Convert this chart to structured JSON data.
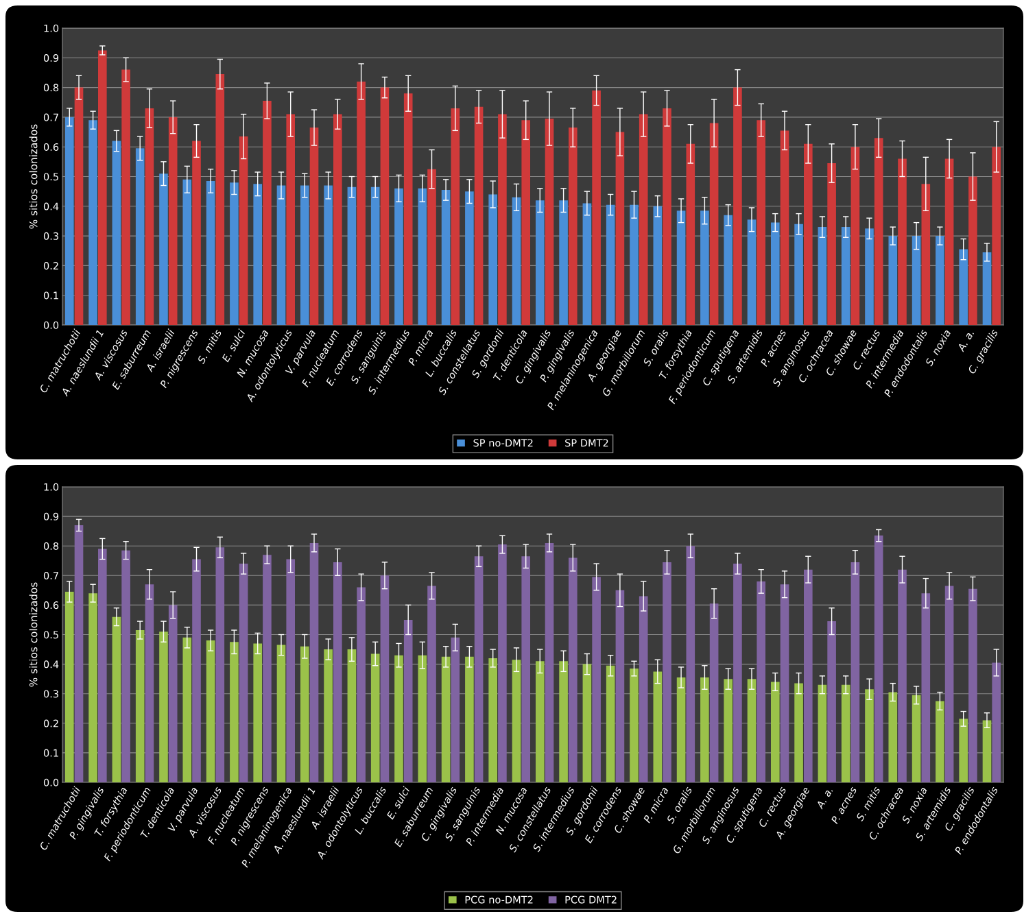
{
  "chart_data": [
    {
      "type": "bar",
      "ylabel": "% sitios colonizados",
      "grid": "y",
      "legend": "bottom",
      "ylim": [
        0,
        1
      ],
      "yticks": [
        {
          "value": 0,
          "label": "0.0"
        },
        {
          "value": 0.1,
          "label": "0.1"
        },
        {
          "value": 0.2,
          "label": "0.2"
        },
        {
          "value": 0.3,
          "label": "0.3"
        },
        {
          "value": 0.4,
          "label": "0.4"
        },
        {
          "value": 0.5,
          "label": "0.5"
        },
        {
          "value": 0.6,
          "label": "0.6"
        },
        {
          "value": 0.7,
          "label": "0.7"
        },
        {
          "value": 0.8,
          "label": "0.8"
        },
        {
          "value": 0.9,
          "label": "0.9"
        },
        {
          "value": 1,
          "label": "1.0"
        }
      ],
      "categories": [
        "C. matruchotii",
        "A. naeslundii 1",
        "A. viscosus",
        "E. saburreum",
        "A. israelii",
        "P. nigrescens",
        "S. mitis",
        "E. sulci",
        "N. mucosa",
        "A. odontolyticus",
        "V. parvula",
        "F. nucleatum",
        "E. corrodens",
        "S. sanguinis",
        "S. intermedius",
        "P. micra",
        "L. buccalis",
        "S. constellatus",
        "S. gordonii",
        "T. denticola",
        "C. gingivalis",
        "P. gingivalis",
        "P. melaninogenica",
        "A. georgiae",
        "G. morbillorum",
        "S. oralis",
        "T. forsythia",
        "F. periodonticum",
        "C. sputigena",
        "S. artemidis",
        "P. acnes",
        "S. anginosus",
        "C. ochracea",
        "C. showae",
        "C. rectus",
        "P. intermedia",
        "P. endodontalis",
        "S. noxia",
        "A. a.",
        "C. gracilis"
      ],
      "series": [
        {
          "name": "SP no-DMT2",
          "color": "#4a8fd8",
          "values": [
            0.7,
            0.69,
            0.62,
            0.595,
            0.51,
            0.49,
            0.485,
            0.48,
            0.475,
            0.47,
            0.47,
            0.47,
            0.465,
            0.465,
            0.46,
            0.46,
            0.455,
            0.45,
            0.44,
            0.43,
            0.42,
            0.42,
            0.41,
            0.405,
            0.405,
            0.4,
            0.385,
            0.385,
            0.37,
            0.355,
            0.345,
            0.34,
            0.33,
            0.33,
            0.325,
            0.3,
            0.3,
            0.3,
            0.255,
            0.245
          ],
          "errors": [
            0.03,
            0.03,
            0.035,
            0.04,
            0.04,
            0.045,
            0.04,
            0.04,
            0.04,
            0.045,
            0.04,
            0.045,
            0.035,
            0.035,
            0.045,
            0.045,
            0.035,
            0.04,
            0.045,
            0.045,
            0.04,
            0.04,
            0.04,
            0.035,
            0.045,
            0.035,
            0.04,
            0.045,
            0.035,
            0.04,
            0.03,
            0.035,
            0.035,
            0.035,
            0.035,
            0.03,
            0.045,
            0.03,
            0.035,
            0.03
          ]
        },
        {
          "name": "SP DMT2",
          "color": "#d03a3a",
          "values": [
            0.8,
            0.925,
            0.86,
            0.73,
            0.7,
            0.62,
            0.845,
            0.635,
            0.755,
            0.71,
            0.665,
            0.71,
            0.82,
            0.8,
            0.78,
            0.525,
            0.73,
            0.735,
            0.71,
            0.69,
            0.695,
            0.665,
            0.79,
            0.65,
            0.71,
            0.73,
            0.61,
            0.68,
            0.8,
            0.69,
            0.655,
            0.61,
            0.545,
            0.6,
            0.63,
            0.56,
            0.475,
            0.56,
            0.5,
            0.6
          ],
          "errors": [
            0.04,
            0.015,
            0.04,
            0.065,
            0.055,
            0.055,
            0.05,
            0.075,
            0.06,
            0.075,
            0.06,
            0.05,
            0.06,
            0.035,
            0.06,
            0.065,
            0.075,
            0.055,
            0.08,
            0.065,
            0.09,
            0.065,
            0.05,
            0.08,
            0.075,
            0.06,
            0.065,
            0.08,
            0.06,
            0.055,
            0.065,
            0.065,
            0.065,
            0.075,
            0.065,
            0.06,
            0.09,
            0.065,
            0.08,
            0.085
          ]
        }
      ]
    },
    {
      "type": "bar",
      "ylabel": "% sitios colonizados",
      "grid": "y",
      "legend": "bottom",
      "ylim": [
        0,
        1
      ],
      "yticks": [
        {
          "value": 0,
          "label": "0.0"
        },
        {
          "value": 0.1,
          "label": "0.1"
        },
        {
          "value": 0.2,
          "label": "0.2"
        },
        {
          "value": 0.3,
          "label": "0.3"
        },
        {
          "value": 0.4,
          "label": "0.4"
        },
        {
          "value": 0.5,
          "label": "0.5"
        },
        {
          "value": 0.6,
          "label": "0.6"
        },
        {
          "value": 0.7,
          "label": "0.7"
        },
        {
          "value": 0.8,
          "label": "0.8"
        },
        {
          "value": 0.9,
          "label": "0.9"
        },
        {
          "value": 1,
          "label": "1.0"
        }
      ],
      "categories": [
        "C. matruchotii",
        "P. gingivalis",
        "T. forsythia",
        "F. periodonticum",
        "T. denticola",
        "V. parvula",
        "A. viscosus",
        "F. nucleatum",
        "P. nigrescens",
        "P. melaninogenica",
        "A. naeslundii 1",
        "A. israelii",
        "A. odontolyticus",
        "L. buccalis",
        "E. sulci",
        "E. saburreum",
        "C. gingivalis",
        "S. sanguinis",
        "P. intermedia",
        "N. mucosa",
        "S. constellatus",
        "S. intermedius",
        "S. gordonii",
        "E. corrodens",
        "C. showae",
        "P. micra",
        "S. oralis",
        "G. morbillorum",
        "S. anginosus",
        "C. sputigena",
        "C. rectus",
        "A. georgiae",
        "A. a.",
        "P. acnes",
        "S. mitis",
        "C. ochracea",
        "S. noxia",
        "S. artemidis",
        "C. gracilis",
        "P. endodontalis"
      ],
      "series": [
        {
          "name": "PCG no-DMT2",
          "color": "#9bc24a",
          "values": [
            0.645,
            0.64,
            0.56,
            0.515,
            0.51,
            0.49,
            0.48,
            0.475,
            0.47,
            0.465,
            0.46,
            0.45,
            0.45,
            0.435,
            0.43,
            0.43,
            0.425,
            0.425,
            0.42,
            0.415,
            0.41,
            0.41,
            0.4,
            0.395,
            0.385,
            0.375,
            0.355,
            0.355,
            0.35,
            0.35,
            0.34,
            0.335,
            0.33,
            0.33,
            0.315,
            0.305,
            0.295,
            0.275,
            0.215,
            0.21
          ],
          "errors": [
            0.035,
            0.03,
            0.03,
            0.03,
            0.035,
            0.035,
            0.035,
            0.04,
            0.035,
            0.035,
            0.04,
            0.035,
            0.04,
            0.04,
            0.04,
            0.045,
            0.035,
            0.035,
            0.03,
            0.04,
            0.04,
            0.035,
            0.035,
            0.035,
            0.025,
            0.04,
            0.035,
            0.04,
            0.035,
            0.035,
            0.03,
            0.035,
            0.03,
            0.03,
            0.035,
            0.03,
            0.03,
            0.03,
            0.025,
            0.025
          ]
        },
        {
          "name": "PCG DMT2",
          "color": "#8064a2",
          "values": [
            0.87,
            0.79,
            0.785,
            0.67,
            0.6,
            0.755,
            0.795,
            0.74,
            0.77,
            0.755,
            0.81,
            0.745,
            0.66,
            0.7,
            0.55,
            0.665,
            0.49,
            0.765,
            0.805,
            0.765,
            0.81,
            0.76,
            0.695,
            0.65,
            0.63,
            0.745,
            0.8,
            0.605,
            0.74,
            0.68,
            0.67,
            0.72,
            0.545,
            0.745,
            0.835,
            0.72,
            0.64,
            0.665,
            0.655,
            0.405
          ],
          "errors": [
            0.02,
            0.035,
            0.03,
            0.05,
            0.045,
            0.04,
            0.035,
            0.035,
            0.03,
            0.045,
            0.03,
            0.045,
            0.045,
            0.045,
            0.05,
            0.045,
            0.045,
            0.035,
            0.03,
            0.04,
            0.03,
            0.045,
            0.045,
            0.055,
            0.05,
            0.04,
            0.04,
            0.05,
            0.035,
            0.04,
            0.045,
            0.045,
            0.045,
            0.04,
            0.02,
            0.045,
            0.05,
            0.045,
            0.04,
            0.045
          ]
        }
      ]
    }
  ]
}
